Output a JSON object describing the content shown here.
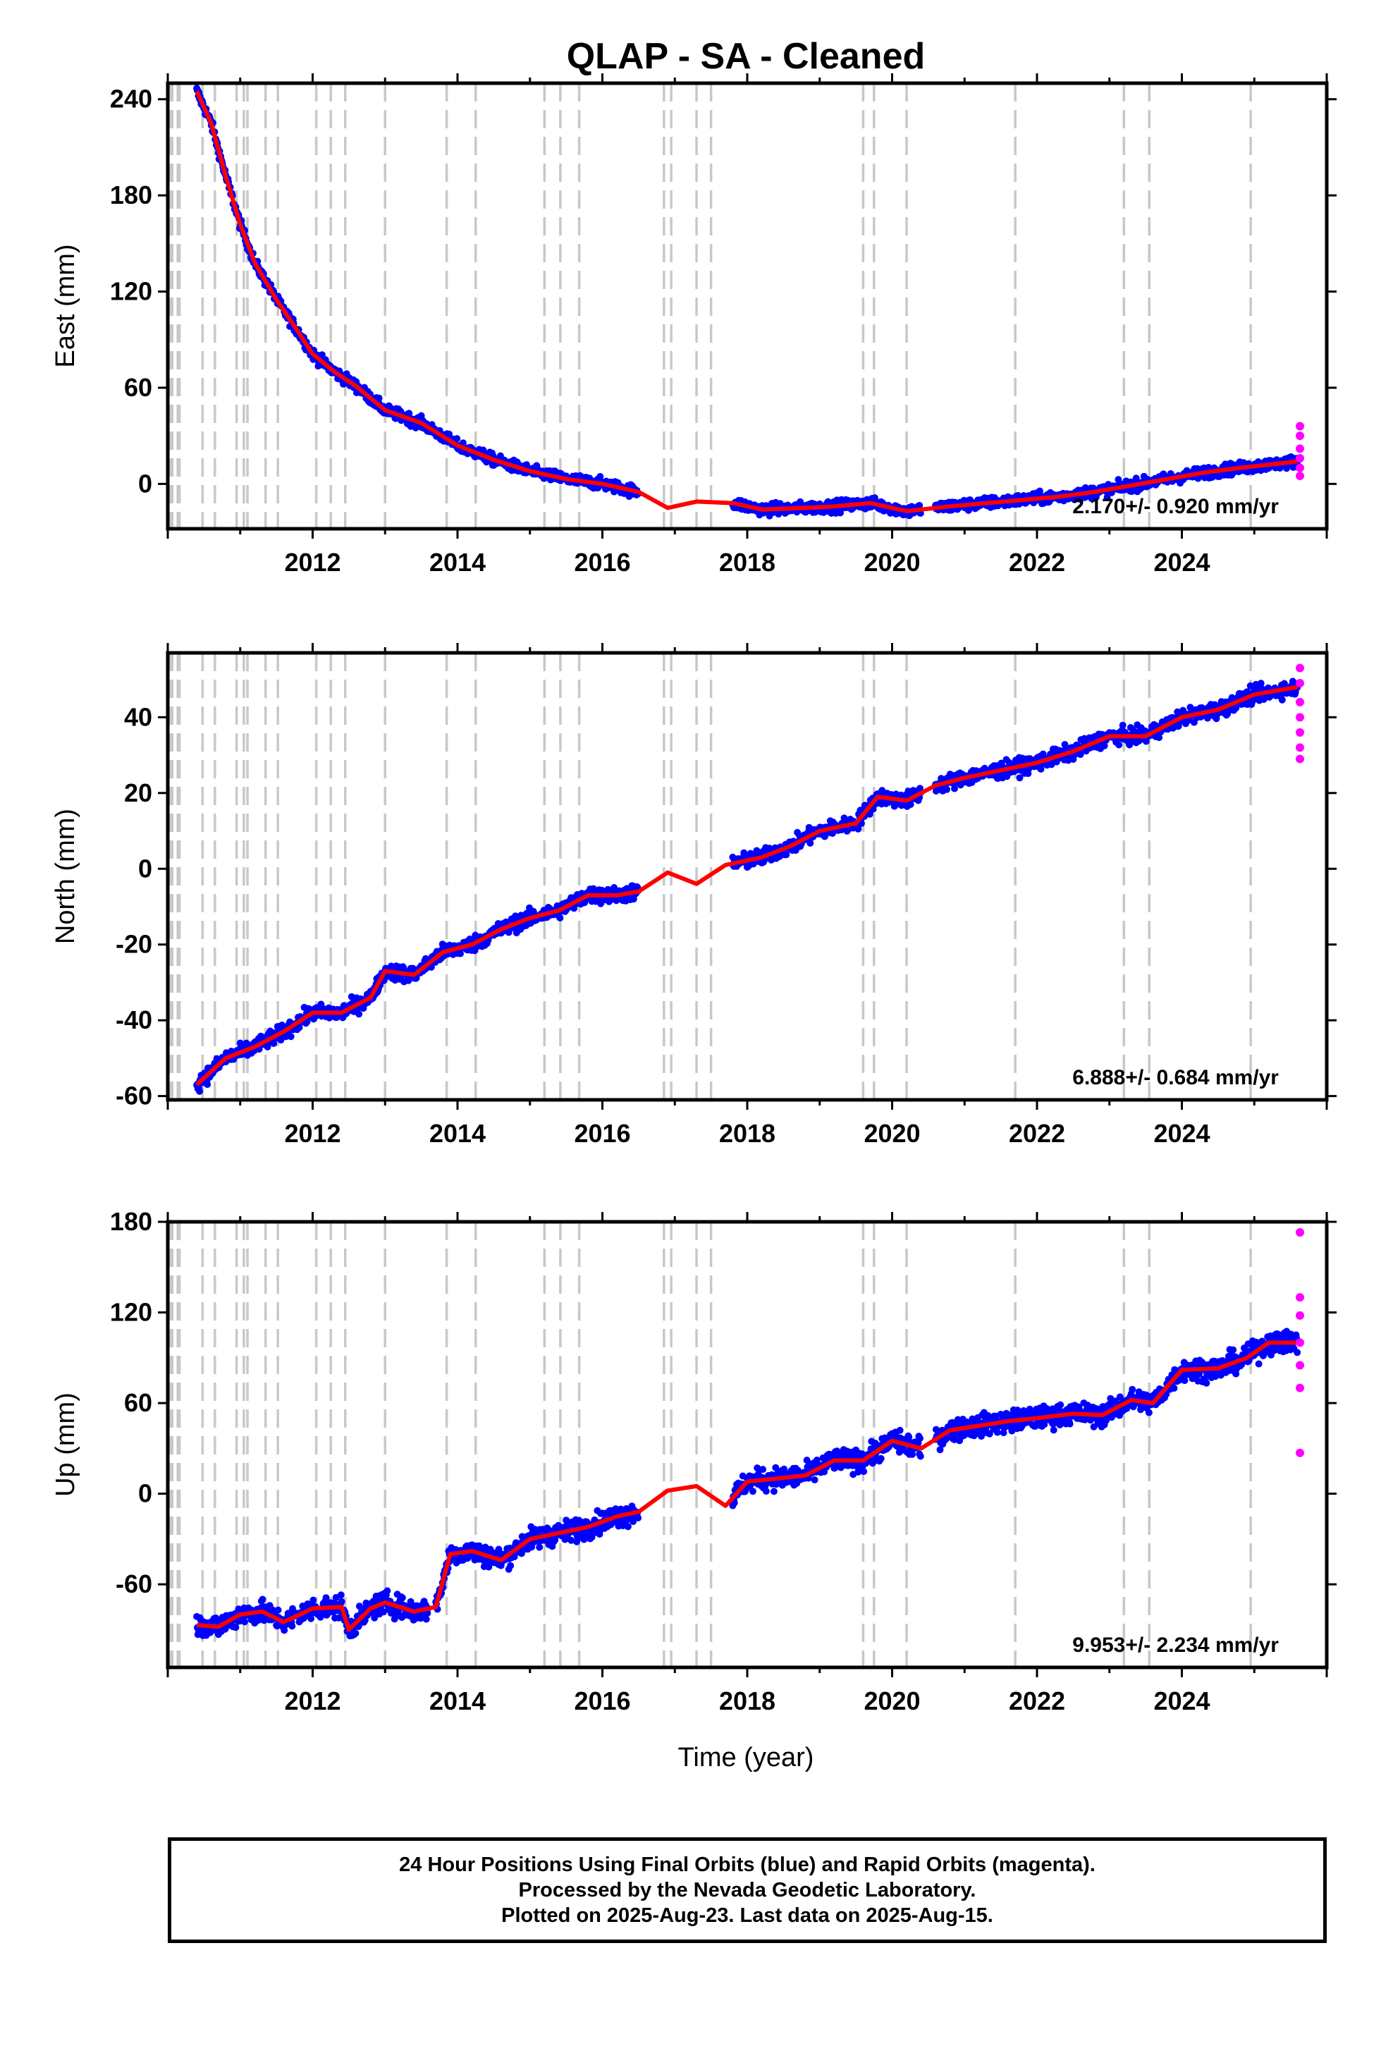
{
  "title": "QLAP  - SA - Cleaned",
  "xlabel": "Time (year)",
  "x_ticks": [
    "2012",
    "2014",
    "2016",
    "2018",
    "2020",
    "2022",
    "2024"
  ],
  "caption": [
    "24 Hour Positions Using Final Orbits (blue) and Rapid Orbits (magenta).",
    "Processed by the Nevada Geodetic Laboratory.",
    "Plotted on 2025-Aug-23. Last data on 2025-Aug-15."
  ],
  "colors": {
    "final": "#0000ff",
    "rapid": "#ff00ff",
    "model": "#ff0000",
    "events": "#c8c8c8"
  },
  "chart_data": [
    {
      "type": "scatter",
      "name": "east",
      "ylabel": "East (mm)",
      "xlim": [
        2010.0,
        2026.0
      ],
      "ylim": [
        -28,
        250
      ],
      "y_ticks": [
        "240",
        "180",
        "120",
        "60",
        "0"
      ],
      "rate_label": "2.170+/- 0.920 mm/yr",
      "model": [
        [
          2010.4,
          245
        ],
        [
          2010.6,
          225
        ],
        [
          2010.8,
          192
        ],
        [
          2011.0,
          162
        ],
        [
          2011.2,
          138
        ],
        [
          2011.5,
          115
        ],
        [
          2011.8,
          95
        ],
        [
          2012.0,
          81
        ],
        [
          2012.3,
          70
        ],
        [
          2012.6,
          61
        ],
        [
          2013.0,
          46
        ],
        [
          2013.5,
          38
        ],
        [
          2014.0,
          24
        ],
        [
          2014.5,
          15
        ],
        [
          2015.0,
          8
        ],
        [
          2015.5,
          3
        ],
        [
          2016.0,
          0
        ],
        [
          2016.5,
          -5
        ],
        [
          2016.9,
          -15
        ],
        [
          2017.3,
          -11
        ],
        [
          2017.8,
          -12
        ],
        [
          2018.2,
          -16
        ],
        [
          2018.8,
          -15
        ],
        [
          2019.2,
          -14
        ],
        [
          2019.7,
          -12
        ],
        [
          2020.2,
          -17
        ],
        [
          2020.8,
          -14
        ],
        [
          2021.3,
          -12
        ],
        [
          2021.8,
          -10
        ],
        [
          2022.3,
          -8
        ],
        [
          2022.8,
          -5
        ],
        [
          2023.3,
          -1
        ],
        [
          2023.8,
          3
        ],
        [
          2024.3,
          7
        ],
        [
          2024.8,
          10
        ],
        [
          2025.6,
          14
        ]
      ],
      "final_segments": [
        [
          2010.4,
          2016.5
        ],
        [
          2017.8,
          2019.6
        ],
        [
          2019.6,
          2020.4
        ],
        [
          2020.6,
          2025.6
        ]
      ],
      "scatter_spread": 7,
      "rapid": [
        [
          2025.63,
          36
        ],
        [
          2025.63,
          30
        ],
        [
          2025.63,
          22
        ],
        [
          2025.63,
          16
        ],
        [
          2025.63,
          10
        ],
        [
          2025.63,
          5
        ]
      ],
      "events": [
        2010.05,
        2010.15,
        2010.48,
        2010.65,
        2010.95,
        2011.05,
        2011.1,
        2011.35,
        2011.52,
        2012.05,
        2012.25,
        2012.45,
        2013.0,
        2013.85,
        2014.25,
        2015.2,
        2015.42,
        2015.68,
        2016.85,
        2016.95,
        2017.3,
        2017.5,
        2019.6,
        2019.75,
        2020.2,
        2021.7,
        2023.2,
        2023.55,
        2024.95
      ]
    },
    {
      "type": "scatter",
      "name": "north",
      "ylabel": "North (mm)",
      "xlim": [
        2010.0,
        2026.0
      ],
      "ylim": [
        -61,
        57
      ],
      "y_ticks": [
        "40",
        "20",
        "0",
        "-20",
        "-40",
        "-60"
      ],
      "rate_label": "6.888+/- 0.684 mm/yr",
      "model": [
        [
          2010.4,
          -57
        ],
        [
          2010.8,
          -50
        ],
        [
          2011.2,
          -47
        ],
        [
          2011.6,
          -43
        ],
        [
          2012.0,
          -38
        ],
        [
          2012.4,
          -38
        ],
        [
          2012.8,
          -34
        ],
        [
          2013.0,
          -27
        ],
        [
          2013.4,
          -28
        ],
        [
          2013.8,
          -22
        ],
        [
          2014.2,
          -20
        ],
        [
          2014.6,
          -16
        ],
        [
          2015.0,
          -13
        ],
        [
          2015.4,
          -11
        ],
        [
          2015.8,
          -7
        ],
        [
          2016.2,
          -7
        ],
        [
          2016.5,
          -6
        ],
        [
          2016.9,
          -1
        ],
        [
          2017.3,
          -4
        ],
        [
          2017.7,
          1
        ],
        [
          2018.2,
          3
        ],
        [
          2018.6,
          6
        ],
        [
          2019.0,
          10
        ],
        [
          2019.5,
          12
        ],
        [
          2019.8,
          19
        ],
        [
          2020.2,
          18
        ],
        [
          2020.6,
          22
        ],
        [
          2021.0,
          24
        ],
        [
          2021.5,
          26
        ],
        [
          2022.0,
          28
        ],
        [
          2022.5,
          31
        ],
        [
          2023.0,
          35
        ],
        [
          2023.5,
          35
        ],
        [
          2024.0,
          40
        ],
        [
          2024.5,
          42
        ],
        [
          2025.0,
          46
        ],
        [
          2025.6,
          48
        ]
      ],
      "final_segments": [
        [
          2010.4,
          2016.5
        ],
        [
          2017.8,
          2019.6
        ],
        [
          2019.6,
          2020.4
        ],
        [
          2020.6,
          2025.6
        ]
      ],
      "scatter_spread": 4,
      "rapid": [
        [
          2025.63,
          53
        ],
        [
          2025.63,
          49
        ],
        [
          2025.63,
          44
        ],
        [
          2025.63,
          40
        ],
        [
          2025.63,
          36
        ],
        [
          2025.63,
          32
        ],
        [
          2025.63,
          29
        ]
      ],
      "events": [
        2010.05,
        2010.15,
        2010.48,
        2010.65,
        2010.95,
        2011.05,
        2011.1,
        2011.35,
        2011.52,
        2012.05,
        2012.25,
        2012.45,
        2013.0,
        2013.85,
        2014.25,
        2015.2,
        2015.42,
        2015.68,
        2016.85,
        2016.95,
        2017.3,
        2017.5,
        2019.6,
        2019.75,
        2020.2,
        2021.7,
        2023.2,
        2023.55,
        2024.95
      ]
    },
    {
      "type": "scatter",
      "name": "up",
      "ylabel": "Up (mm)",
      "xlim": [
        2010.0,
        2026.0
      ],
      "ylim": [
        -115,
        180
      ],
      "y_ticks": [
        "180",
        "120",
        "60",
        "0",
        "-60"
      ],
      "rate_label": "9.953+/- 2.234 mm/yr",
      "model": [
        [
          2010.4,
          -87
        ],
        [
          2010.7,
          -88
        ],
        [
          2011.0,
          -80
        ],
        [
          2011.3,
          -78
        ],
        [
          2011.6,
          -85
        ],
        [
          2012.0,
          -76
        ],
        [
          2012.4,
          -75
        ],
        [
          2012.5,
          -90
        ],
        [
          2012.8,
          -76
        ],
        [
          2013.0,
          -72
        ],
        [
          2013.4,
          -78
        ],
        [
          2013.7,
          -75
        ],
        [
          2013.9,
          -40
        ],
        [
          2014.2,
          -38
        ],
        [
          2014.6,
          -44
        ],
        [
          2015.0,
          -30
        ],
        [
          2015.4,
          -26
        ],
        [
          2015.8,
          -22
        ],
        [
          2016.2,
          -15
        ],
        [
          2016.5,
          -12
        ],
        [
          2016.9,
          2
        ],
        [
          2017.3,
          5
        ],
        [
          2017.7,
          -8
        ],
        [
          2018.0,
          8
        ],
        [
          2018.4,
          10
        ],
        [
          2018.8,
          12
        ],
        [
          2019.2,
          22
        ],
        [
          2019.6,
          22
        ],
        [
          2020.0,
          35
        ],
        [
          2020.4,
          30
        ],
        [
          2020.8,
          42
        ],
        [
          2021.2,
          45
        ],
        [
          2021.6,
          48
        ],
        [
          2022.0,
          50
        ],
        [
          2022.5,
          53
        ],
        [
          2022.9,
          52
        ],
        [
          2023.3,
          62
        ],
        [
          2023.6,
          60
        ],
        [
          2024.0,
          82
        ],
        [
          2024.5,
          83
        ],
        [
          2024.9,
          90
        ],
        [
          2025.2,
          100
        ],
        [
          2025.6,
          100
        ]
      ],
      "final_segments": [
        [
          2010.4,
          2013.6
        ],
        [
          2013.7,
          2016.5
        ],
        [
          2017.8,
          2019.6
        ],
        [
          2019.6,
          2020.4
        ],
        [
          2020.6,
          2025.6
        ]
      ],
      "scatter_spread": 14,
      "rapid": [
        [
          2025.63,
          173
        ],
        [
          2025.63,
          130
        ],
        [
          2025.63,
          118
        ],
        [
          2025.63,
          100
        ],
        [
          2025.63,
          85
        ],
        [
          2025.63,
          70
        ],
        [
          2025.63,
          27
        ]
      ],
      "events": [
        2010.05,
        2010.15,
        2010.48,
        2010.65,
        2010.95,
        2011.05,
        2011.1,
        2011.35,
        2011.52,
        2012.05,
        2012.25,
        2012.45,
        2013.0,
        2013.85,
        2014.25,
        2015.2,
        2015.42,
        2015.68,
        2016.85,
        2016.95,
        2017.3,
        2017.5,
        2019.6,
        2019.75,
        2020.2,
        2021.7,
        2023.2,
        2023.55,
        2024.95
      ]
    }
  ]
}
